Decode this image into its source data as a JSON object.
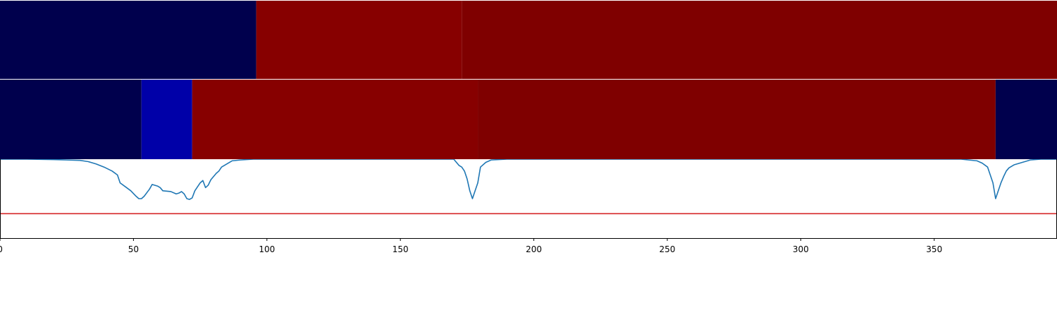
{
  "chart_data": [
    {
      "type": "heatmap",
      "title": "",
      "xlabel": "",
      "ylabel": "",
      "xlim": [
        0,
        396
      ],
      "segments": [
        {
          "start": 0,
          "end": 96,
          "color": "#00004d"
        },
        {
          "start": 96,
          "end": 173,
          "color": "#870000"
        },
        {
          "start": 173,
          "end": 396,
          "color": "#7f0000"
        }
      ]
    },
    {
      "type": "heatmap",
      "title": "",
      "xlabel": "",
      "ylabel": "",
      "xlim": [
        0,
        396
      ],
      "segments": [
        {
          "start": 0,
          "end": 53,
          "color": "#00004d"
        },
        {
          "start": 53,
          "end": 72,
          "color": "#0000a8"
        },
        {
          "start": 72,
          "end": 179,
          "color": "#870000"
        },
        {
          "start": 179,
          "end": 373,
          "color": "#7f0000"
        },
        {
          "start": 373,
          "end": 396,
          "color": "#00004d"
        }
      ]
    },
    {
      "type": "line",
      "title": "",
      "xlabel": "",
      "ylabel": "",
      "xlim": [
        0,
        396
      ],
      "ylim": [
        -1,
        0
      ],
      "x_ticks": [
        0,
        50,
        100,
        150,
        200,
        250,
        300,
        350
      ],
      "grid": false,
      "series": [
        {
          "color": "#1f77b4",
          "points": [
            [
              0,
              0
            ],
            [
              10,
              0
            ],
            [
              20,
              -0.005
            ],
            [
              25,
              -0.01
            ],
            [
              30,
              -0.015
            ],
            [
              33,
              -0.03
            ],
            [
              36,
              -0.06
            ],
            [
              39,
              -0.1
            ],
            [
              42,
              -0.15
            ],
            [
              44,
              -0.2
            ],
            [
              45,
              -0.3
            ],
            [
              47,
              -0.35
            ],
            [
              49,
              -0.4
            ],
            [
              51,
              -0.47
            ],
            [
              52,
              -0.5
            ],
            [
              53,
              -0.5
            ],
            [
              54,
              -0.47
            ],
            [
              56,
              -0.38
            ],
            [
              57,
              -0.32
            ],
            [
              59,
              -0.34
            ],
            [
              60,
              -0.36
            ],
            [
              61,
              -0.4
            ],
            [
              64,
              -0.41
            ],
            [
              66,
              -0.44
            ],
            [
              67,
              -0.43
            ],
            [
              68,
              -0.41
            ],
            [
              69,
              -0.44
            ],
            [
              70,
              -0.5
            ],
            [
              71,
              -0.51
            ],
            [
              72,
              -0.49
            ],
            [
              73,
              -0.4
            ],
            [
              74,
              -0.35
            ],
            [
              75,
              -0.3
            ],
            [
              76,
              -0.27
            ],
            [
              77,
              -0.36
            ],
            [
              78,
              -0.33
            ],
            [
              79,
              -0.26
            ],
            [
              80,
              -0.22
            ],
            [
              81,
              -0.18
            ],
            [
              82,
              -0.15
            ],
            [
              83,
              -0.1
            ],
            [
              85,
              -0.06
            ],
            [
              87,
              -0.02
            ],
            [
              90,
              -0.01
            ],
            [
              95,
              0
            ],
            [
              170,
              0
            ],
            [
              172,
              -0.08
            ],
            [
              173,
              -0.1
            ],
            [
              174,
              -0.15
            ],
            [
              175,
              -0.25
            ],
            [
              176,
              -0.4
            ],
            [
              177,
              -0.5
            ],
            [
              178,
              -0.4
            ],
            [
              179,
              -0.3
            ],
            [
              180,
              -0.1
            ],
            [
              182,
              -0.04
            ],
            [
              184,
              -0.01
            ],
            [
              190,
              0
            ],
            [
              360,
              0
            ],
            [
              366,
              -0.02
            ],
            [
              368,
              -0.05
            ],
            [
              370,
              -0.1
            ],
            [
              371,
              -0.2
            ],
            [
              372,
              -0.3
            ],
            [
              373,
              -0.5
            ],
            [
              374,
              -0.4
            ],
            [
              375,
              -0.3
            ],
            [
              376,
              -0.22
            ],
            [
              377,
              -0.15
            ],
            [
              378,
              -0.11
            ],
            [
              380,
              -0.07
            ],
            [
              382,
              -0.05
            ],
            [
              384,
              -0.03
            ],
            [
              386,
              -0.01
            ],
            [
              390,
              0
            ],
            [
              396,
              0
            ]
          ]
        },
        {
          "color": "#d62728",
          "points": [
            [
              0,
              -0.69
            ],
            [
              396,
              -0.69
            ]
          ]
        }
      ]
    }
  ]
}
